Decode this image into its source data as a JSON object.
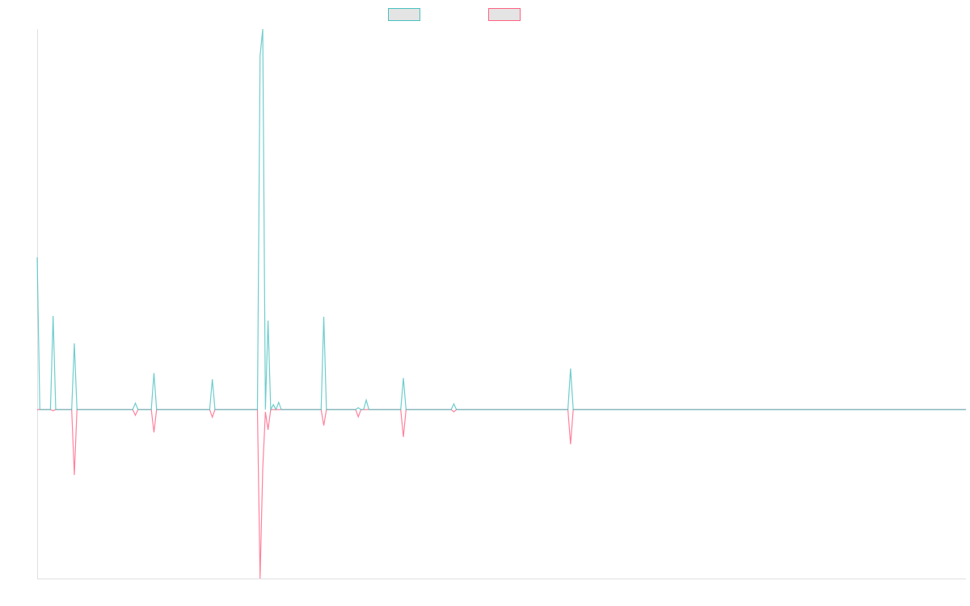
{
  "chart_data": {
    "type": "line",
    "title": "",
    "xlabel": "",
    "ylabel": "",
    "point_count": 351,
    "ylim": [
      -44.4,
      100
    ],
    "grid": false,
    "legend_placement": "top-center",
    "baseline_value": 0,
    "series": [
      {
        "name": "",
        "color": "#4bc0c0",
        "nonzero_points": [
          [
            0,
            40
          ],
          [
            6,
            24.6
          ],
          [
            14,
            17.4
          ],
          [
            37,
            1.7
          ],
          [
            44,
            9.6
          ],
          [
            66,
            8
          ],
          [
            84,
            93
          ],
          [
            85,
            100
          ],
          [
            87,
            23.4
          ],
          [
            89,
            1.3
          ],
          [
            91,
            1.9
          ],
          [
            108,
            24.4
          ],
          [
            121,
            0.5
          ],
          [
            124,
            2.5
          ],
          [
            138,
            8.3
          ],
          [
            157,
            1.5
          ],
          [
            201,
            10.8
          ]
        ]
      },
      {
        "name": "",
        "color": "#ff6384",
        "nonzero_points": [
          [
            6,
            -0.3
          ],
          [
            14,
            -17.2
          ],
          [
            37,
            -1.5
          ],
          [
            44,
            -6
          ],
          [
            66,
            -2
          ],
          [
            84,
            -44.4
          ],
          [
            85,
            -15.5
          ],
          [
            86,
            -0.6
          ],
          [
            87,
            -5.3
          ],
          [
            108,
            -4.2
          ],
          [
            121,
            -1.9
          ],
          [
            138,
            -7.2
          ],
          [
            157,
            -0.6
          ],
          [
            201,
            -9.1
          ]
        ]
      }
    ]
  }
}
